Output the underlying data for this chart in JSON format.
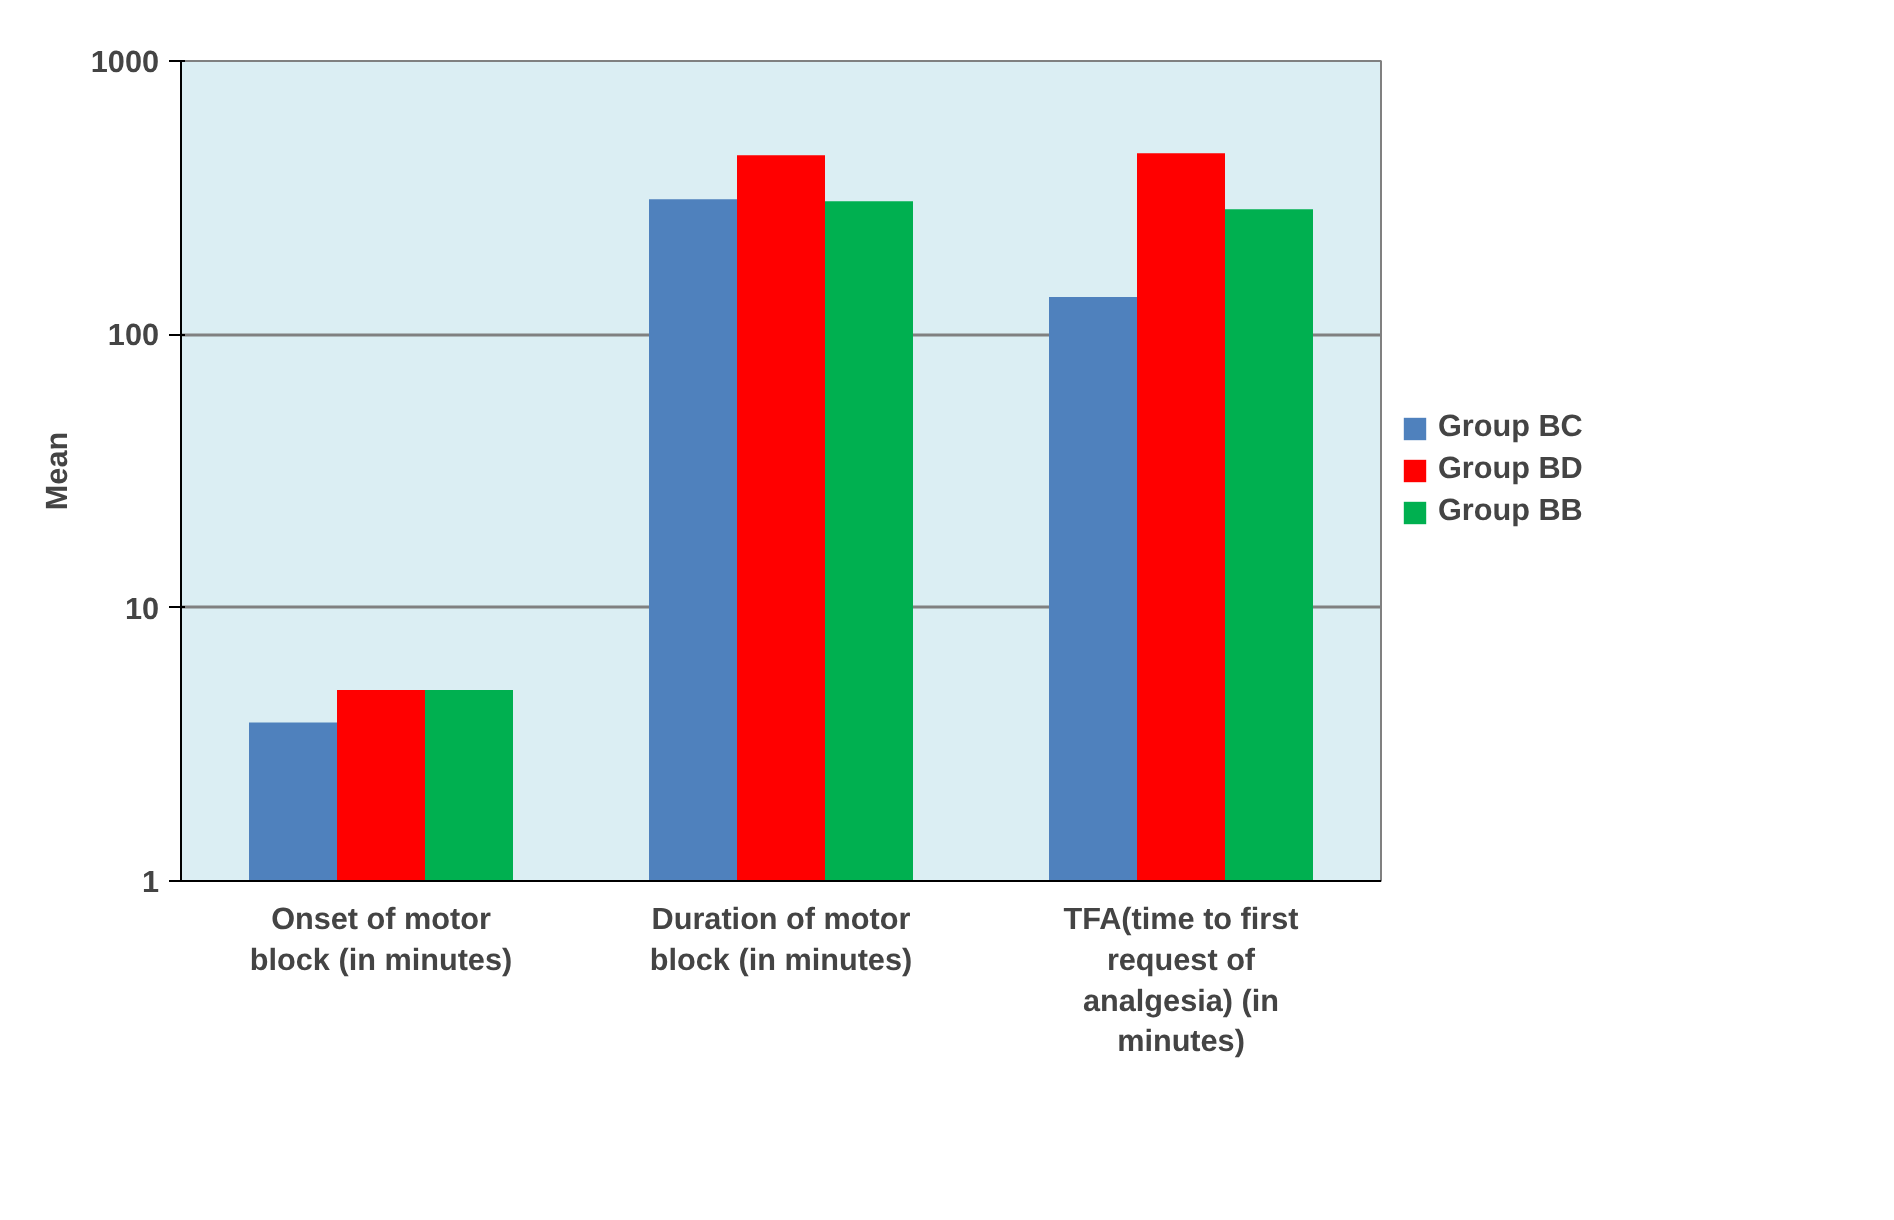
{
  "chart_data": {
    "type": "bar",
    "ylabel": "Mean",
    "log": true,
    "grid": "y",
    "legend": "right",
    "categories": [
      "Onset of motor block (in minutes)",
      "Duration of motor block (in minutes)",
      "TFA(time to first request of analgesia) (in minutes)"
    ],
    "series": [
      {
        "name": "Group BC",
        "color": "#4f81bd",
        "values": [
          3.8,
          312,
          137
        ]
      },
      {
        "name": "Group BD",
        "color": "#ff0000",
        "values": [
          5.0,
          452,
          460
        ]
      },
      {
        "name": "Group BB",
        "color": "#00b050",
        "values": [
          5.0,
          307,
          287
        ]
      }
    ],
    "ylim": [
      1,
      1000
    ],
    "yticks": [
      1,
      10,
      100,
      1000
    ]
  }
}
